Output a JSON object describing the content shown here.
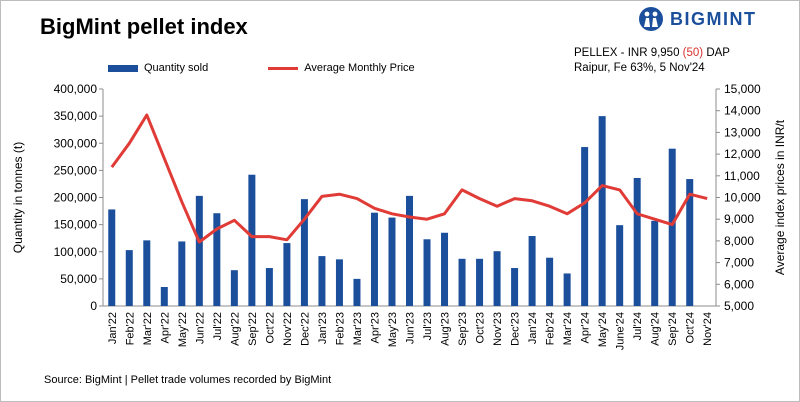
{
  "header": {
    "title": "BigMint pellet index",
    "logo_text": "BIGMINT"
  },
  "note": {
    "line1_prefix": "PELLEX - INR 9,950 ",
    "line1_change": "(50)",
    "line1_suffix": " DAP",
    "line2": "Raipur, Fe 63%, 5 Nov'24"
  },
  "footer": {
    "source": "Source: BigMint | Pellet trade volumes recorded by BigMint"
  },
  "colors": {
    "bar": "#1b4f9c",
    "line": "#e03b36",
    "change": "#d9302c"
  },
  "chart_data": {
    "type": "bar+line",
    "categories": [
      "Jan'22",
      "Feb'22",
      "Mar'22",
      "Apr'22",
      "May'22",
      "Jun'22",
      "Jul'22",
      "Aug'22",
      "Sep'22",
      "Oct'22",
      "Nov'22",
      "Dec'22",
      "Jan'23",
      "Feb'23",
      "Mar'23",
      "Apr'23",
      "May'23",
      "Jun'23",
      "Jul'23",
      "Aug'23",
      "Sep'23",
      "Oct'23",
      "Nov'23",
      "Dec'23",
      "Jan'24",
      "Feb'24",
      "Mar'24",
      "Apr'24",
      "May'24",
      "June'24",
      "Jul'24",
      "Aug'24",
      "Sep'24",
      "Oct'24",
      "Nov'24"
    ],
    "series": [
      {
        "name": "Quantity sold",
        "type": "bar",
        "axis": "left",
        "values": [
          178000,
          103000,
          121000,
          35000,
          119000,
          203000,
          171000,
          66000,
          242000,
          70000,
          116000,
          197000,
          92000,
          86000,
          50000,
          172000,
          163000,
          203000,
          123000,
          135000,
          87000,
          87000,
          101000,
          70000,
          129000,
          89000,
          60000,
          293000,
          350000,
          149000,
          236000,
          157000,
          290000,
          234000,
          null
        ]
      },
      {
        "name": "Average Monthly Price",
        "type": "line",
        "axis": "right",
        "values": [
          11400,
          12500,
          13800,
          11800,
          9800,
          7950,
          8550,
          8950,
          8200,
          8200,
          8050,
          9000,
          10050,
          10150,
          9950,
          9500,
          9250,
          9100,
          9000,
          9250,
          10350,
          9950,
          9600,
          9950,
          9850,
          9600,
          9250,
          9750,
          10550,
          10350,
          9250,
          9000,
          8750,
          10150,
          9950
        ]
      }
    ],
    "title": "BigMint pellet index",
    "ylabel": "Quantity in tonnes (t)",
    "ylabel_right": "Average index prices in INR/t",
    "ylim": [
      0,
      400000
    ],
    "yticks": [
      "0",
      "50,000",
      "100,000",
      "150,000",
      "200,000",
      "250,000",
      "300,000",
      "350,000",
      "400,000"
    ],
    "ylim_right": [
      5000,
      15000
    ],
    "yticks_right": [
      "5,000",
      "6,000",
      "7,000",
      "8,000",
      "9,000",
      "10,000",
      "11,000",
      "12,000",
      "13,000",
      "14,000",
      "15,000"
    ],
    "legend": [
      "Quantity sold",
      "Average Monthly Price"
    ],
    "legend_position": "top-left",
    "grid": false
  }
}
